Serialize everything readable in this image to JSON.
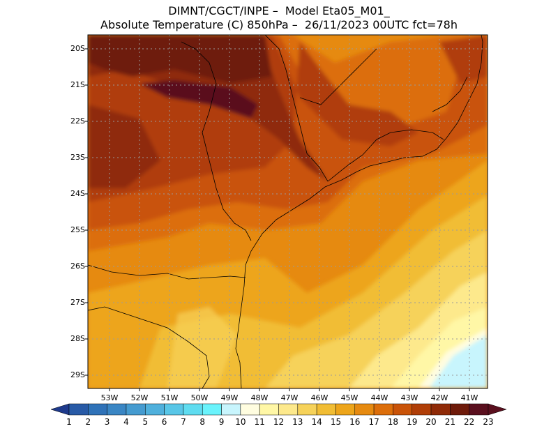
{
  "header": {
    "line1": "DIMNT/CGCT/INPE –  Model Eta05_M01_",
    "line2": "Absolute Temperature (C) 850hPa –  26/11/2023 00UTC fct=78h"
  },
  "map": {
    "lat_labels": [
      "20S",
      "21S",
      "22S",
      "23S",
      "24S",
      "25S",
      "26S",
      "27S",
      "28S",
      "29S"
    ],
    "lon_labels": [
      "53W",
      "52W",
      "51W",
      "50W",
      "49W",
      "48W",
      "47W",
      "46W",
      "45W",
      "44W",
      "43W",
      "42W",
      "41W"
    ],
    "temperature_pattern": "warmest (22-23 C) over northwest and north interior, cooling toward southeast ocean (11-14 C)"
  },
  "colorbar": {
    "labels": [
      "1",
      "2",
      "3",
      "4",
      "5",
      "6",
      "7",
      "8",
      "9",
      "10",
      "11",
      "12",
      "13",
      "14",
      "15",
      "16",
      "17",
      "18",
      "19",
      "20",
      "21",
      "22",
      "23"
    ],
    "colors": [
      "#1e3a8c",
      "#285aa6",
      "#2f72b8",
      "#3a86c4",
      "#459bd0",
      "#4fb0dc",
      "#58c6e7",
      "#5fdcf0",
      "#6af3fc",
      "#c8f5fd",
      "#fffde0",
      "#fff7a6",
      "#fde98c",
      "#f6d25a",
      "#f1bd34",
      "#eda51a",
      "#e68a10",
      "#dc6e0a",
      "#c95308",
      "#b03e07",
      "#8f2a07",
      "#6e1a0a",
      "#5a0f1e"
    ]
  }
}
